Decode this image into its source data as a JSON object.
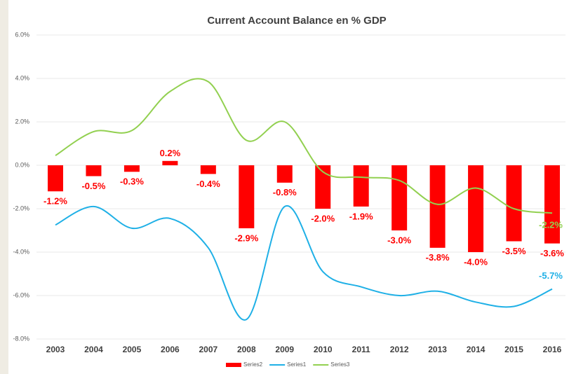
{
  "chart_data": {
    "type": "combo",
    "title": "Current Account Balance en % GDP",
    "categories": [
      "2003",
      "2004",
      "2005",
      "2006",
      "2007",
      "2008",
      "2009",
      "2010",
      "2011",
      "2012",
      "2013",
      "2014",
      "2015",
      "2016"
    ],
    "ylim": [
      -8,
      6
    ],
    "yticks": [
      {
        "value": -8,
        "label": "-8.0%"
      },
      {
        "value": -6,
        "label": "-6.0%"
      },
      {
        "value": -4,
        "label": "-4.0%"
      },
      {
        "value": -2,
        "label": "-2.0%"
      },
      {
        "value": 0,
        "label": "0.0%"
      },
      {
        "value": 2,
        "label": "2.0%"
      },
      {
        "value": 4,
        "label": "4.0%"
      },
      {
        "value": 6,
        "label": "6.0%"
      }
    ],
    "grid": true,
    "legend": "bottom",
    "series": [
      {
        "name": "Series2",
        "type": "bar",
        "color": "#ff0000",
        "values": [
          -1.2,
          -0.5,
          -0.3,
          0.2,
          -0.4,
          -2.9,
          -0.8,
          -2.0,
          -1.9,
          -3.0,
          -3.8,
          -4.0,
          -3.5,
          -3.6
        ],
        "value_labels": [
          "-1.2%",
          "-0.5%",
          "-0.3%",
          "0.2%",
          "-0.4%",
          "-2.9%",
          "-0.8%",
          "-2.0%",
          "-1.9%",
          "-3.0%",
          "-3.8%",
          "-4.0%",
          "-3.5%",
          "-3.6%"
        ]
      },
      {
        "name": "Series1",
        "type": "line",
        "color": "#1fb0e6",
        "values": [
          -2.75,
          -1.9,
          -2.9,
          -2.45,
          -3.8,
          -7.1,
          -1.9,
          -4.9,
          -5.6,
          -6.0,
          -5.8,
          -6.3,
          -6.5,
          -5.7
        ],
        "value_labels": [
          null,
          null,
          null,
          null,
          null,
          null,
          null,
          null,
          null,
          null,
          null,
          null,
          null,
          "-5.7%"
        ]
      },
      {
        "name": "Series3",
        "type": "line",
        "color": "#92d050",
        "values": [
          0.45,
          1.55,
          1.6,
          3.4,
          3.85,
          1.15,
          2.0,
          -0.3,
          -0.55,
          -0.7,
          -1.8,
          -1.05,
          -2.0,
          -2.2
        ],
        "value_labels": [
          null,
          null,
          null,
          null,
          null,
          null,
          null,
          null,
          null,
          null,
          null,
          null,
          null,
          "-2.2%"
        ]
      }
    ]
  }
}
